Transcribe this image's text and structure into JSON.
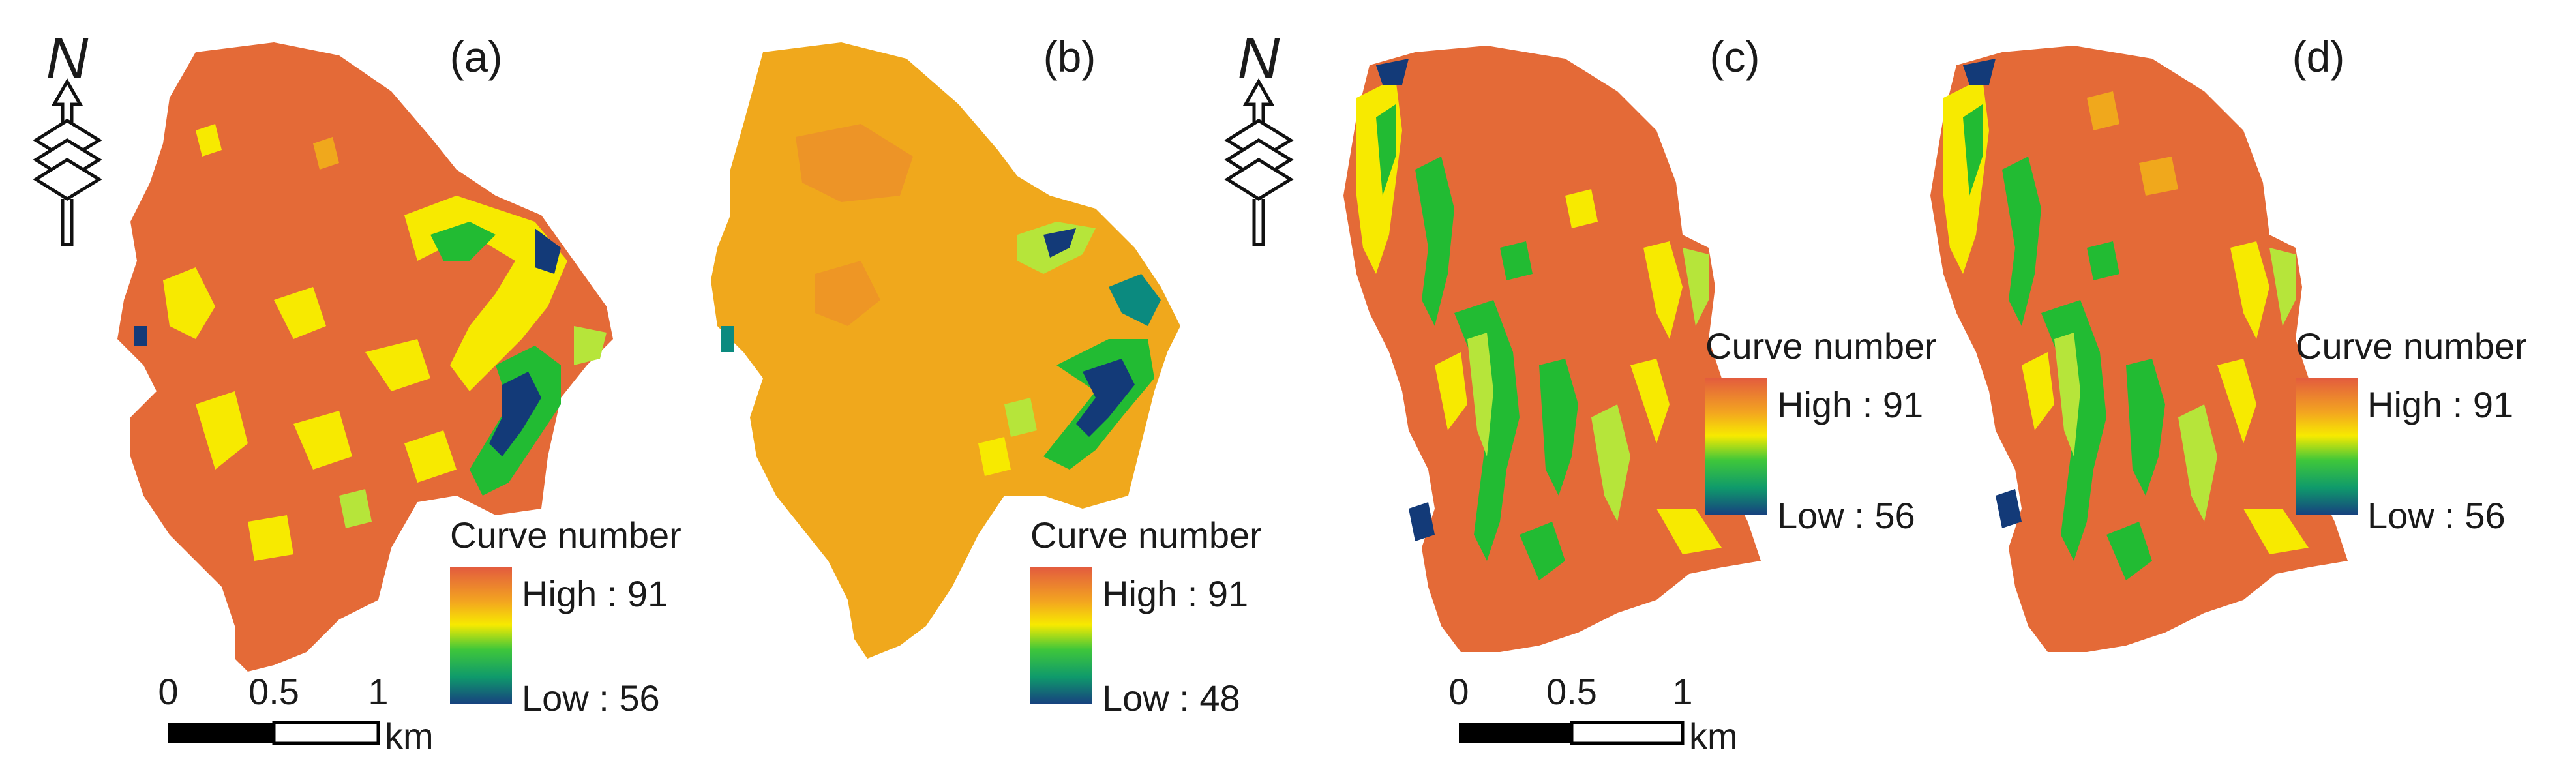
{
  "panels": [
    {
      "id": "a",
      "label": "(a)",
      "legend_title": "Curve number",
      "legend_high": "High : 91",
      "legend_low": "Low : 56"
    },
    {
      "id": "b",
      "label": "(b)",
      "legend_title": "Curve number",
      "legend_high": "High : 91",
      "legend_low": "Low : 48"
    },
    {
      "id": "c",
      "label": "(c)",
      "legend_title": "Curve number",
      "legend_high": "High : 91",
      "legend_low": "Low : 56"
    },
    {
      "id": "d",
      "label": "(d)",
      "legend_title": "Curve number",
      "legend_high": "High : 91",
      "legend_low": "Low : 56"
    }
  ],
  "north_label": "N",
  "scalebars": [
    {
      "ticks": [
        "0",
        "0.5",
        "1"
      ],
      "unit": "km"
    },
    {
      "ticks": [
        "0",
        "0.5",
        "1"
      ],
      "unit": "km"
    }
  ],
  "colors": {
    "red_orange": "#e46a37",
    "orange": "#f0a81c",
    "yellow": "#f7ea00",
    "light_green": "#b6e53a",
    "green": "#22bb33",
    "teal": "#0b8a7f",
    "navy": "#133a78"
  }
}
